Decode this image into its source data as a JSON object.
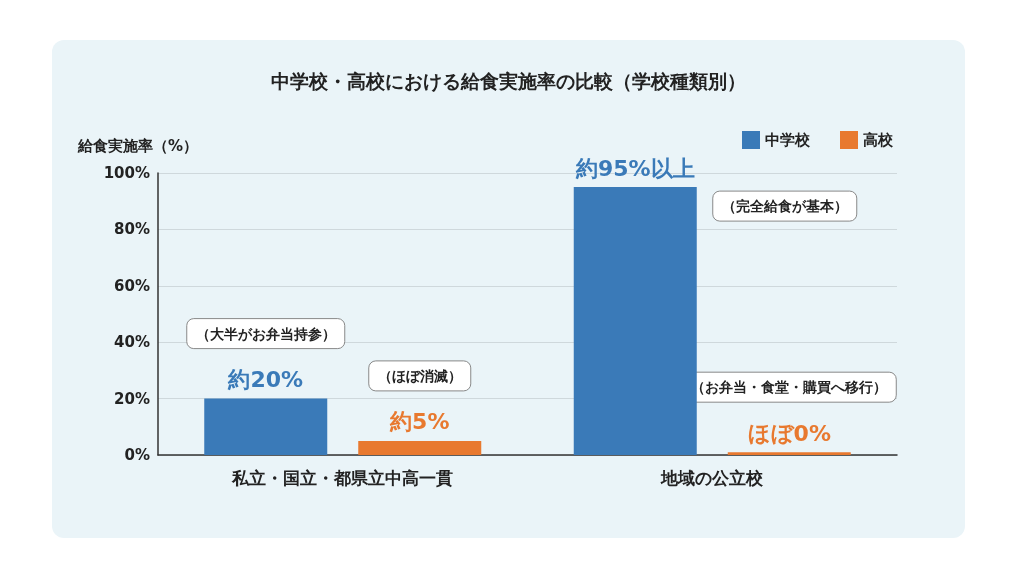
{
  "chart_data": {
    "type": "bar",
    "title": "中学校・高校における給食実施率の比較（学校種類別）",
    "ylabel": "給食実施率（%）",
    "categories": [
      "私立・国立・都県立中高一貫",
      "地域の公立校"
    ],
    "series": [
      {
        "name": "中学校",
        "color": "#3a7ab8",
        "values": [
          20,
          95
        ],
        "value_labels": [
          "約20%",
          "約95%以上"
        ]
      },
      {
        "name": "高校",
        "color": "#e8792f",
        "values": [
          5,
          1
        ],
        "value_labels": [
          "約5%",
          "ほぼ0%"
        ]
      }
    ],
    "annotations": [
      "（大半がお弁当持参）",
      "（ほぼ消滅）",
      "（完全給食が基本）",
      "（お弁当・食堂・購買へ移行）"
    ],
    "ylim": [
      0,
      100
    ],
    "yticks": [
      {
        "value": 0,
        "label": "0%"
      },
      {
        "value": 20,
        "label": "20%"
      },
      {
        "value": 40,
        "label": "40%"
      },
      {
        "value": 60,
        "label": "60%"
      },
      {
        "value": 80,
        "label": "80%"
      },
      {
        "value": 100,
        "label": "100%"
      }
    ],
    "grid": "y",
    "legend": "top right"
  }
}
